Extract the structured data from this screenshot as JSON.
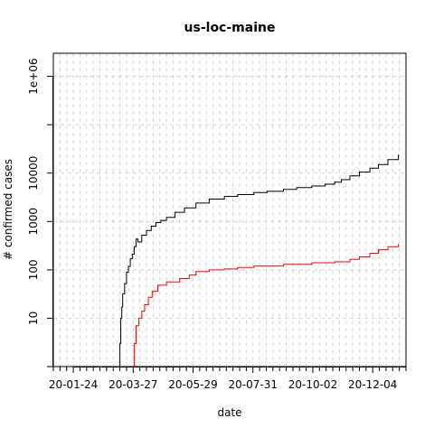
{
  "chart_data": {
    "type": "line",
    "title": "us-loc-maine",
    "xlabel": "date",
    "ylabel": "# confirmed cases",
    "y_scale": "log",
    "grid": true,
    "legend": "none",
    "xlim": [
      "2020-01-03",
      "2021-01-08"
    ],
    "ylim": [
      1,
      3000000
    ],
    "x_tick_labels": [
      "20-01-24",
      "20-03-27",
      "20-05-29",
      "20-07-31",
      "20-10-02",
      "20-12-04"
    ],
    "x_tick_dates": [
      "2020-01-24",
      "2020-03-27",
      "2020-05-29",
      "2020-07-31",
      "2020-10-02",
      "2020-12-04"
    ],
    "y_tick_values": [
      10,
      100,
      1000,
      10000,
      1000000
    ],
    "y_tick_labels": [
      "10",
      "100",
      "1000",
      "10000",
      "1e+06"
    ],
    "series": [
      {
        "color": "#000000",
        "x": [
          "2020-03-12",
          "2020-03-13",
          "2020-03-14",
          "2020-03-15",
          "2020-03-16",
          "2020-03-18",
          "2020-03-20",
          "2020-03-22",
          "2020-03-24",
          "2020-03-26",
          "2020-03-28",
          "2020-03-30",
          "2020-04-01",
          "2020-04-05",
          "2020-04-10",
          "2020-04-15",
          "2020-04-20",
          "2020-04-25",
          "2020-05-01",
          "2020-05-10",
          "2020-05-20",
          "2020-06-01",
          "2020-06-15",
          "2020-07-01",
          "2020-07-15",
          "2020-08-01",
          "2020-08-15",
          "2020-09-01",
          "2020-09-15",
          "2020-10-01",
          "2020-10-15",
          "2020-10-25",
          "2020-11-01",
          "2020-11-10",
          "2020-11-20",
          "2020-12-01",
          "2020-12-10",
          "2020-12-20",
          "2020-12-31"
        ],
        "y": [
          1,
          3,
          10,
          17,
          32,
          52,
          89,
          118,
          169,
          211,
          303,
          432,
          376,
          520,
          650,
          800,
          950,
          1050,
          1220,
          1550,
          1900,
          2400,
          2900,
          3300,
          3600,
          3950,
          4200,
          4600,
          5000,
          5400,
          5900,
          6500,
          7300,
          8800,
          10500,
          12600,
          15000,
          19000,
          24000
        ]
      },
      {
        "color": "#ff0000",
        "x": [
          "2020-03-27",
          "2020-03-28",
          "2020-03-30",
          "2020-04-02",
          "2020-04-05",
          "2020-04-08",
          "2020-04-12",
          "2020-04-16",
          "2020-04-22",
          "2020-05-01",
          "2020-05-15",
          "2020-05-25",
          "2020-06-01",
          "2020-06-15",
          "2020-07-01",
          "2020-07-15",
          "2020-08-01",
          "2020-09-01",
          "2020-10-01",
          "2020-10-25",
          "2020-11-10",
          "2020-11-20",
          "2020-12-01",
          "2020-12-10",
          "2020-12-20",
          "2020-12-31"
        ],
        "y": [
          1,
          3,
          7,
          10,
          14,
          19,
          27,
          36,
          48,
          56,
          66,
          78,
          92,
          100,
          104,
          112,
          120,
          130,
          140,
          146,
          165,
          185,
          220,
          260,
          300,
          340
        ]
      }
    ]
  }
}
